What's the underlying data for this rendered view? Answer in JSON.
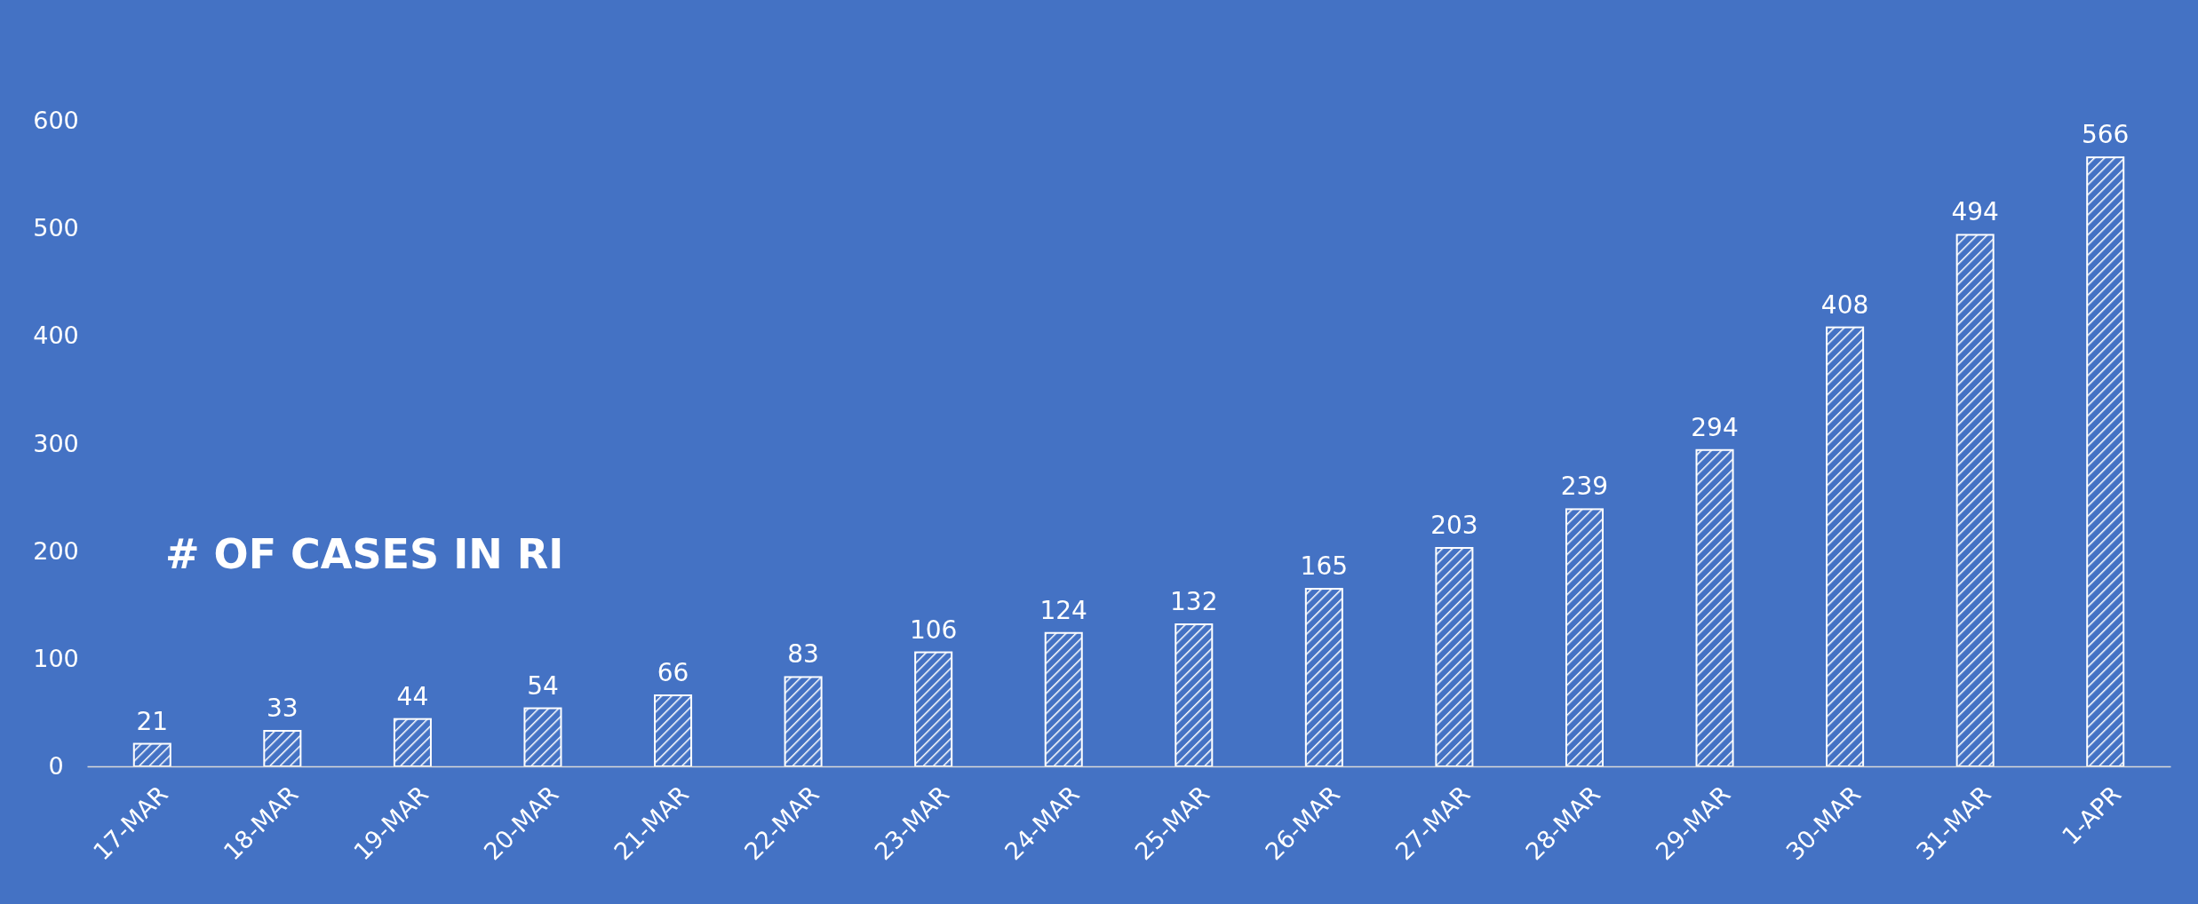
{
  "chart_data": {
    "type": "bar",
    "title": "# OF CASES IN RI",
    "categories": [
      "17-MAR",
      "18-MAR",
      "19-MAR",
      "20-MAR",
      "21-MAR",
      "22-MAR",
      "23-MAR",
      "24-MAR",
      "25-MAR",
      "26-MAR",
      "27-MAR",
      "28-MAR",
      "29-MAR",
      "30-MAR",
      "31-MAR",
      "1-APR"
    ],
    "values": [
      21,
      33,
      44,
      54,
      66,
      83,
      106,
      124,
      132,
      165,
      203,
      239,
      294,
      408,
      494,
      566
    ],
    "color": "#ffffff",
    "ylim": [
      0,
      600
    ],
    "yticks": [
      0,
      100,
      200,
      300,
      400,
      500,
      600
    ],
    "grid": false,
    "data_labels": true
  }
}
